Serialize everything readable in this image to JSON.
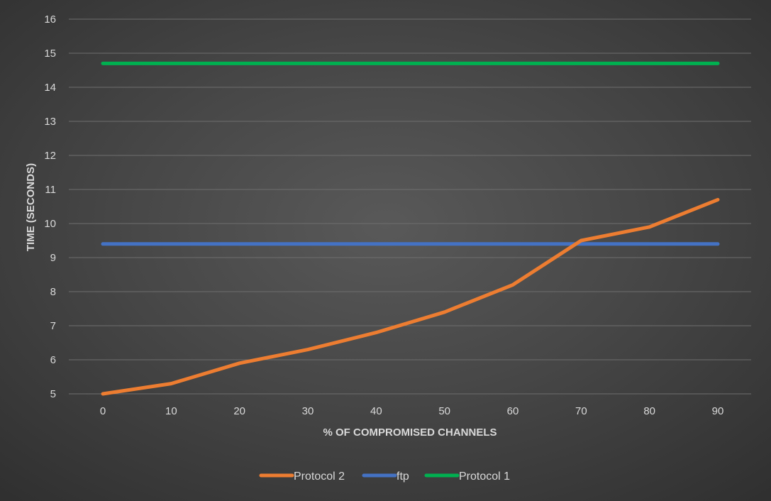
{
  "chart_data": {
    "type": "line",
    "title": "",
    "xlabel": "% OF COMPROMISED CHANNELS",
    "ylabel": "TIME (SECONDS)",
    "x": [
      0,
      10,
      20,
      30,
      40,
      50,
      60,
      70,
      80,
      90
    ],
    "x_tick_labels": [
      "0",
      "10",
      "20",
      "30",
      "40",
      "50",
      "60",
      "70",
      "80",
      "90"
    ],
    "ylim": [
      5,
      16
    ],
    "y_ticks": [
      5,
      6,
      7,
      8,
      9,
      10,
      11,
      12,
      13,
      14,
      15,
      16
    ],
    "grid": "horizontal",
    "legend_position": "bottom",
    "series": [
      {
        "name": "Protocol 2",
        "color": "#ed7d31",
        "values": [
          5.0,
          5.3,
          5.9,
          6.3,
          6.8,
          7.4,
          8.2,
          9.5,
          9.9,
          10.7
        ]
      },
      {
        "name": "ftp",
        "color": "#4472c4",
        "values": [
          9.4,
          9.4,
          9.4,
          9.4,
          9.4,
          9.4,
          9.4,
          9.4,
          9.4,
          9.4
        ]
      },
      {
        "name": "Protocol 1",
        "color": "#00b050",
        "values": [
          14.7,
          14.7,
          14.7,
          14.7,
          14.7,
          14.7,
          14.7,
          14.7,
          14.7,
          14.7
        ]
      }
    ]
  }
}
